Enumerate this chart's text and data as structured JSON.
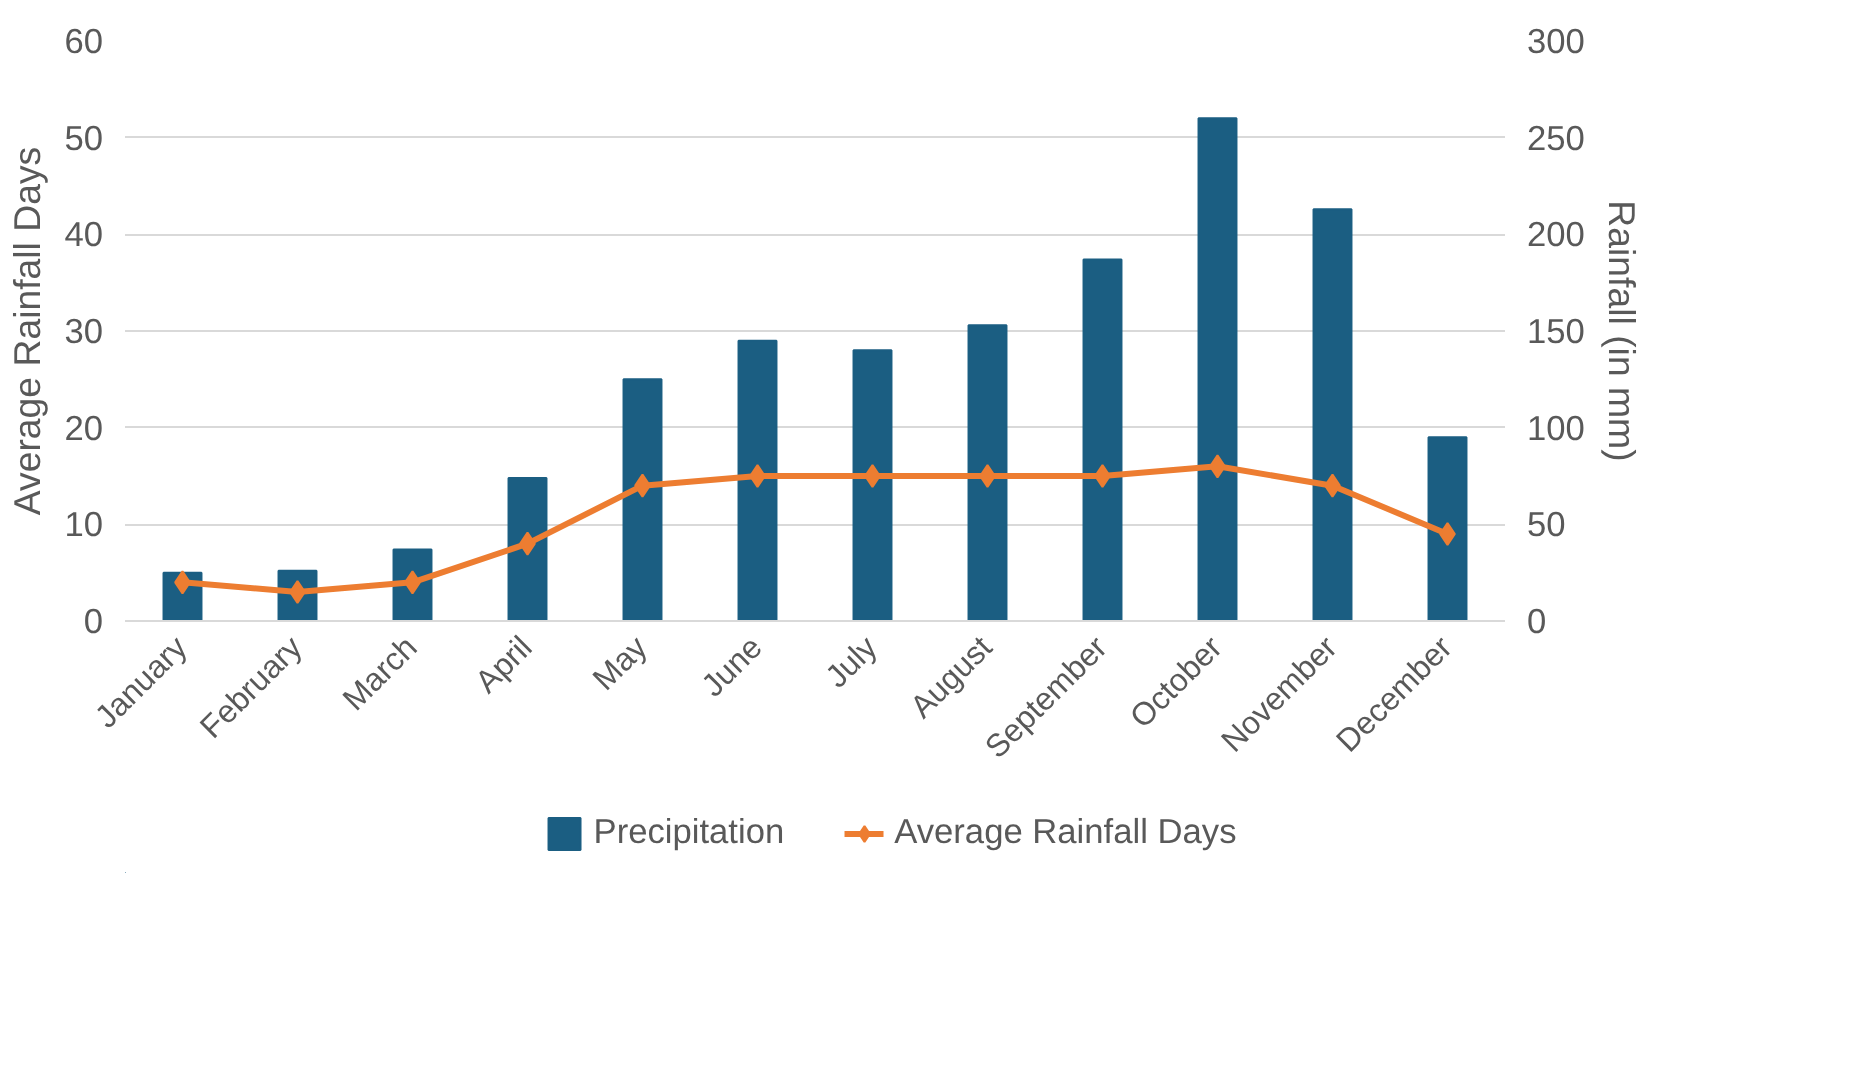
{
  "chart_data": {
    "type": "bar",
    "categories": [
      "January",
      "February",
      "March",
      "April",
      "May",
      "June",
      "July",
      "August",
      "September",
      "October",
      "November",
      "December"
    ],
    "series": [
      {
        "name": "Precipitation",
        "type": "bar",
        "axis": "y2",
        "color": "#1b5e82",
        "values": [
          25,
          26,
          37,
          74,
          125,
          145,
          140,
          153,
          187,
          260,
          213,
          95
        ]
      },
      {
        "name": "Average Rainfall Days",
        "type": "line",
        "color": "#ed7d31",
        "marker": "diamond",
        "values": [
          4,
          3,
          4,
          8,
          14,
          15,
          15,
          15,
          15,
          16,
          14,
          9
        ]
      }
    ],
    "ylabel": "Average Rainfall Days",
    "y2label": "Rainfall (in mm)",
    "ylim": [
      0,
      60
    ],
    "yticks": [
      0,
      10,
      20,
      30,
      40,
      50,
      60
    ],
    "y2lim": [
      0,
      300
    ],
    "y2ticks": [
      0,
      50,
      100,
      150,
      200,
      250,
      300
    ],
    "grid": "y",
    "legend": "bottom"
  }
}
